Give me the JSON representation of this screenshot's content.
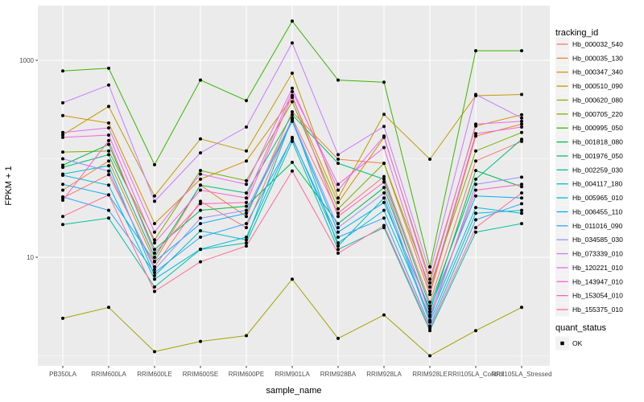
{
  "figure": {
    "background": "#FFFFFF",
    "panel_background": "#EBEBEB",
    "grid_color": "#FFFFFF",
    "tick_color": "#333333",
    "tick_text_color": "#4D4D4D",
    "title_text_color": "#000000",
    "point_color": "#000000",
    "legend_key_background": "#F2F2F2"
  },
  "chart_data": {
    "type": "line",
    "title": "",
    "xlabel": "sample_name",
    "ylabel": "FPKM + 1",
    "y_scale": "log10",
    "y_tick_labels": [
      "1000",
      "10"
    ],
    "y_tick_values": [
      1000,
      10
    ],
    "y_minor_values": [
      100,
      1
    ],
    "y_range_approx": [
      0.8,
      3400
    ],
    "grid": true,
    "categories": [
      "PB350LA",
      "RRIM600LA",
      "RRIM600LE",
      "RRIM600SE",
      "RRIM600PE",
      "RRIM901LA",
      "RRIM928BA",
      "RRIM928LA",
      "RRIM928LE",
      "RRII105LA_Control",
      "RRII105LA_Stressed"
    ],
    "legend": {
      "title": "tracking_id",
      "position": "right"
    },
    "quant_legend": {
      "title": "quant_status",
      "items": [
        {
          "label": "OK",
          "shape": "square",
          "color": "#000000"
        }
      ]
    },
    "series": [
      {
        "name": "Hb_000032_540",
        "color": "#F8766D",
        "values": [
          40,
          69,
          8,
          37,
          20,
          260,
          28,
          66,
          3.5,
          95,
          150
        ]
      },
      {
        "name": "Hb_000035_130",
        "color": "#EA8331",
        "values": [
          48,
          95,
          9.1,
          54,
          26,
          300,
          99,
          90,
          4.2,
          170,
          225
        ]
      },
      {
        "name": "Hb_000347_340",
        "color": "#D89000",
        "values": [
          275,
          231,
          22,
          62,
          95,
          420,
          36,
          165,
          6,
          215,
          280
        ]
      },
      {
        "name": "Hb_000510_090",
        "color": "#C09B00",
        "values": [
          175,
          340,
          42,
          159,
          120,
          740,
          40,
          282,
          99,
          437,
          450
        ]
      },
      {
        "name": "Hb_000620_080",
        "color": "#A3A500",
        "values": [
          2.4,
          3.1,
          1.1,
          1.4,
          1.6,
          6,
          1.5,
          2.6,
          1,
          1.8,
          3.1
        ]
      },
      {
        "name": "Hb_000705_220",
        "color": "#7CAE00",
        "values": [
          117,
          120,
          15,
          76,
          60,
          380,
          31,
          90,
          5,
          120,
          185
        ]
      },
      {
        "name": "Hb_000995_050",
        "color": "#39B600",
        "values": [
          780,
          830,
          87,
          630,
          390,
          2500,
          630,
          600,
          8,
          1250,
          1250
        ]
      },
      {
        "name": "Hb_001818_080",
        "color": "#00BB4E",
        "values": [
          86,
          140,
          12,
          30,
          33,
          92,
          22,
          51,
          2.8,
          76,
          52
        ]
      },
      {
        "name": "Hb_001976_050",
        "color": "#00BF7D",
        "values": [
          82,
          110,
          10,
          54,
          45,
          280,
          90,
          62,
          3.2,
          62,
          158
        ]
      },
      {
        "name": "Hb_002259_030",
        "color": "#00C1A3",
        "values": [
          21.5,
          25,
          5,
          12,
          14,
          150,
          12,
          20,
          1.8,
          18,
          22
        ]
      },
      {
        "name": "Hb_004117_180",
        "color": "#00BFC4",
        "values": [
          70,
          85,
          6.5,
          18.6,
          15,
          260,
          13,
          40,
          2.2,
          28,
          30
        ]
      },
      {
        "name": "Hb_005965_010",
        "color": "#00BAE0",
        "values": [
          68,
          54,
          6,
          12.1,
          16,
          165,
          14,
          30,
          2.5,
          32,
          28
        ]
      },
      {
        "name": "Hb_006455_110",
        "color": "#00B0F6",
        "values": [
          55,
          43,
          9,
          22,
          28,
          240,
          18,
          36,
          3,
          42,
          40
        ]
      },
      {
        "name": "Hb_011016_090",
        "color": "#35A2FF",
        "values": [
          41,
          30,
          7,
          16,
          22,
          160,
          16,
          25,
          2,
          24,
          35
        ]
      },
      {
        "name": "Hb_034585_030",
        "color": "#9590FF",
        "values": [
          100,
          75,
          7.5,
          25,
          30,
          250,
          20,
          45,
          2.3,
          55,
          65
        ]
      },
      {
        "name": "Hb_073339_010",
        "color": "#C77CFF",
        "values": [
          370,
          560,
          37,
          115,
          210,
          1500,
          110,
          213,
          7,
          450,
          260
        ]
      },
      {
        "name": "Hb_120221_010",
        "color": "#E76BF3",
        "values": [
          185,
          206,
          18,
          70,
          55,
          520,
          48,
          170,
          5.5,
          225,
          240
        ]
      },
      {
        "name": "Hb_143947_010",
        "color": "#FA62DB",
        "values": [
          165,
          174,
          14,
          48,
          40,
          480,
          55,
          130,
          4.5,
          180,
          210
        ]
      },
      {
        "name": "Hb_153054_010",
        "color": "#FF62BC",
        "values": [
          38,
          153,
          11,
          35,
          36,
          440,
          26,
          58,
          2.6,
          48,
          55
        ]
      },
      {
        "name": "Hb_155375_010",
        "color": "#FF6A98",
        "values": [
          26,
          43,
          4.5,
          9,
          13,
          75,
          11,
          21,
          1.9,
          20,
          45
        ]
      }
    ]
  }
}
